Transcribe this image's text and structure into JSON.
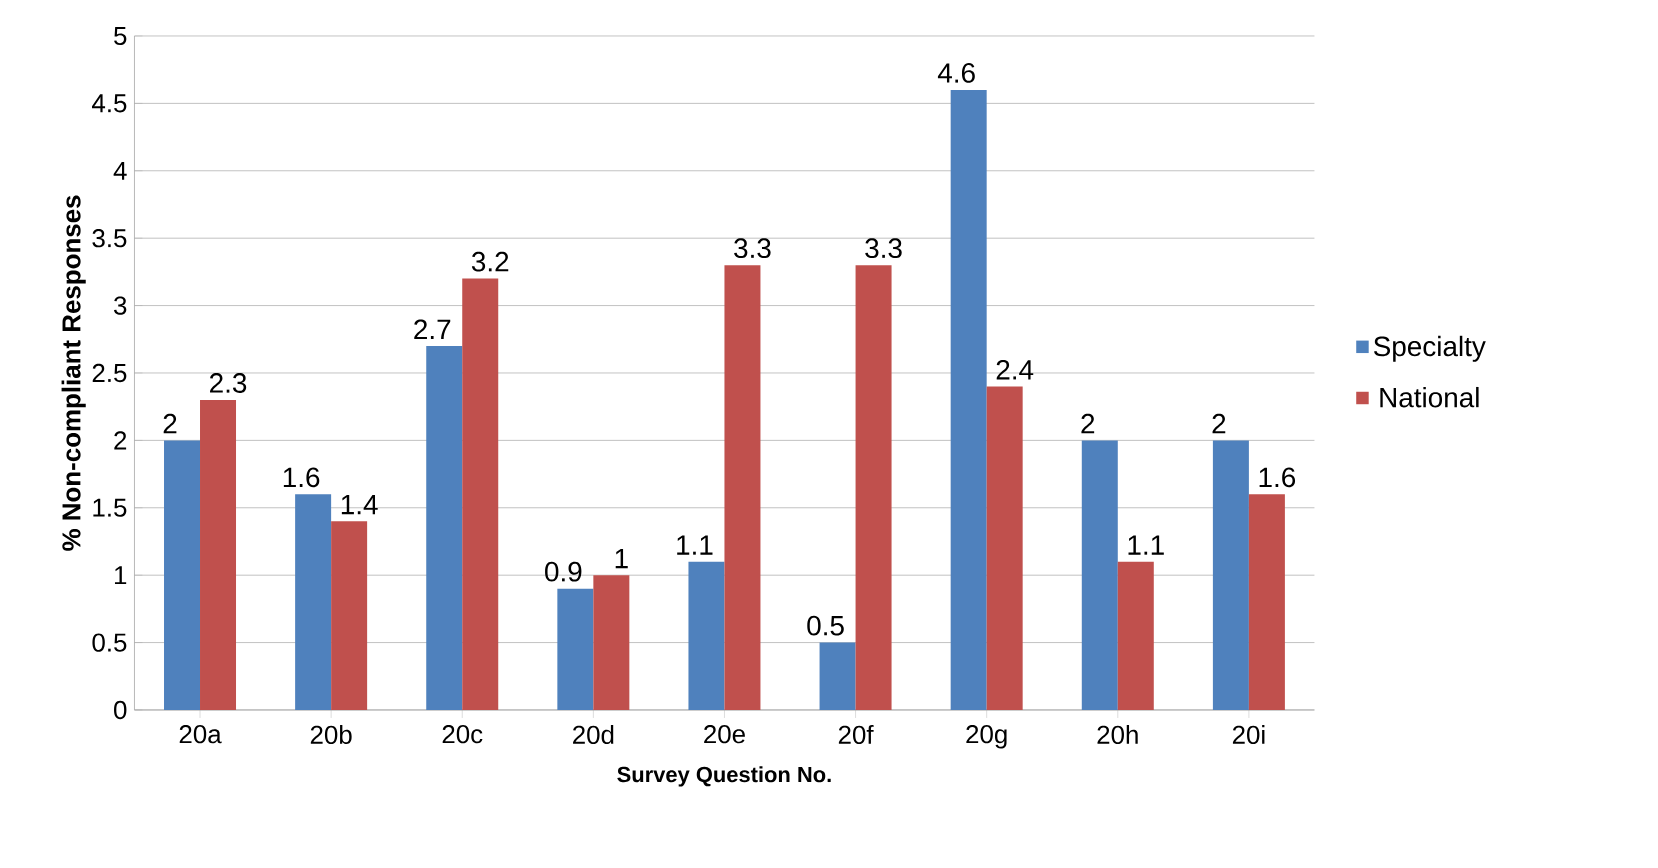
{
  "chart_data": {
    "type": "bar",
    "xlabel": "Survey Question No.",
    "ylabel": "% Non-compliant Responses",
    "categories": [
      "20a",
      "20b",
      "20c",
      "20d",
      "20e",
      "20f",
      "20g",
      "20h",
      "20i"
    ],
    "series": [
      {
        "name": "Specialty",
        "color": "#4f81bd",
        "values": [
          2,
          1.6,
          2.7,
          0.9,
          1.1,
          0.5,
          4.6,
          2,
          2
        ]
      },
      {
        "name": "National",
        "color": "#c0504d",
        "values": [
          2.3,
          1.4,
          3.2,
          1,
          3.3,
          3.3,
          2.4,
          1.1,
          1.6
        ]
      }
    ],
    "ylim": [
      0,
      5
    ],
    "yticks": [
      0,
      0.5,
      1,
      1.5,
      2,
      2.5,
      3,
      3.5,
      4,
      4.5,
      5
    ],
    "grid": "y",
    "legend": "right",
    "data_labels": true
  }
}
